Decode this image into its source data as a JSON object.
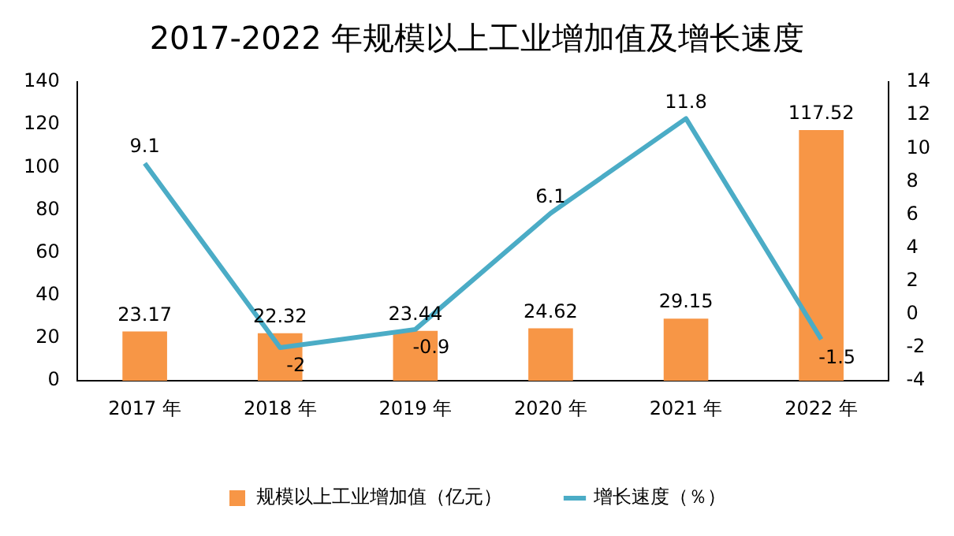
{
  "chart_data": {
    "type": "bar",
    "title": "2017-2022 年规模以上工业增加值及增长速度",
    "categories": [
      "2017 年",
      "2018 年",
      "2019 年",
      "2020 年",
      "2021 年",
      "2022 年"
    ],
    "series": [
      {
        "name": "规模以上工业增加值（亿元）",
        "color": "#f79646",
        "values": [
          23.17,
          22.32,
          23.44,
          24.62,
          29.15,
          117.52
        ]
      },
      {
        "name": "增长速度（％）",
        "type": "line",
        "axis": "y2",
        "color": "#4bacc6",
        "values": [
          9.1,
          -2,
          -0.9,
          6.1,
          11.8,
          -1.5
        ]
      }
    ],
    "ylim": [
      0,
      140
    ],
    "yticks": [
      0,
      20,
      40,
      60,
      80,
      100,
      120,
      140
    ],
    "y2lim": [
      -4,
      14
    ],
    "y2ticks": [
      -4,
      -2,
      0,
      2,
      4,
      6,
      8,
      10,
      12,
      14
    ],
    "data_labels": true,
    "legend": "bottom",
    "grid": false,
    "marker": "none",
    "line_style": "solid"
  }
}
